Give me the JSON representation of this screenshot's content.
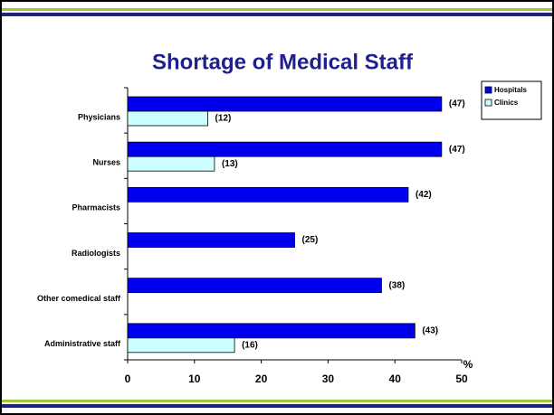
{
  "chart_data": {
    "type": "hbar",
    "title": "Shortage of Medical Staff",
    "categories": [
      "Physicians",
      "Nurses",
      "Pharmacists",
      "Radiologists",
      "Other comedical staff",
      "Administrative staff"
    ],
    "series": [
      {
        "name": "Hospitals",
        "color": "#0000ee",
        "values": [
          47,
          47,
          42,
          25,
          38,
          43
        ],
        "value_labels": [
          "(47)",
          "(47)",
          "(42)",
          "(25)",
          "(38)",
          "(43)"
        ]
      },
      {
        "name": "Clinics",
        "color": "#ccffff",
        "values": [
          12,
          13,
          null,
          null,
          null,
          16
        ],
        "value_labels": [
          "(12)",
          "(13)",
          null,
          null,
          null,
          "(16)"
        ]
      }
    ],
    "xlabel": "%",
    "xlim": [
      0,
      50
    ],
    "xticks": [
      0,
      10,
      20,
      30,
      40,
      50
    ],
    "legend": "upper right"
  }
}
